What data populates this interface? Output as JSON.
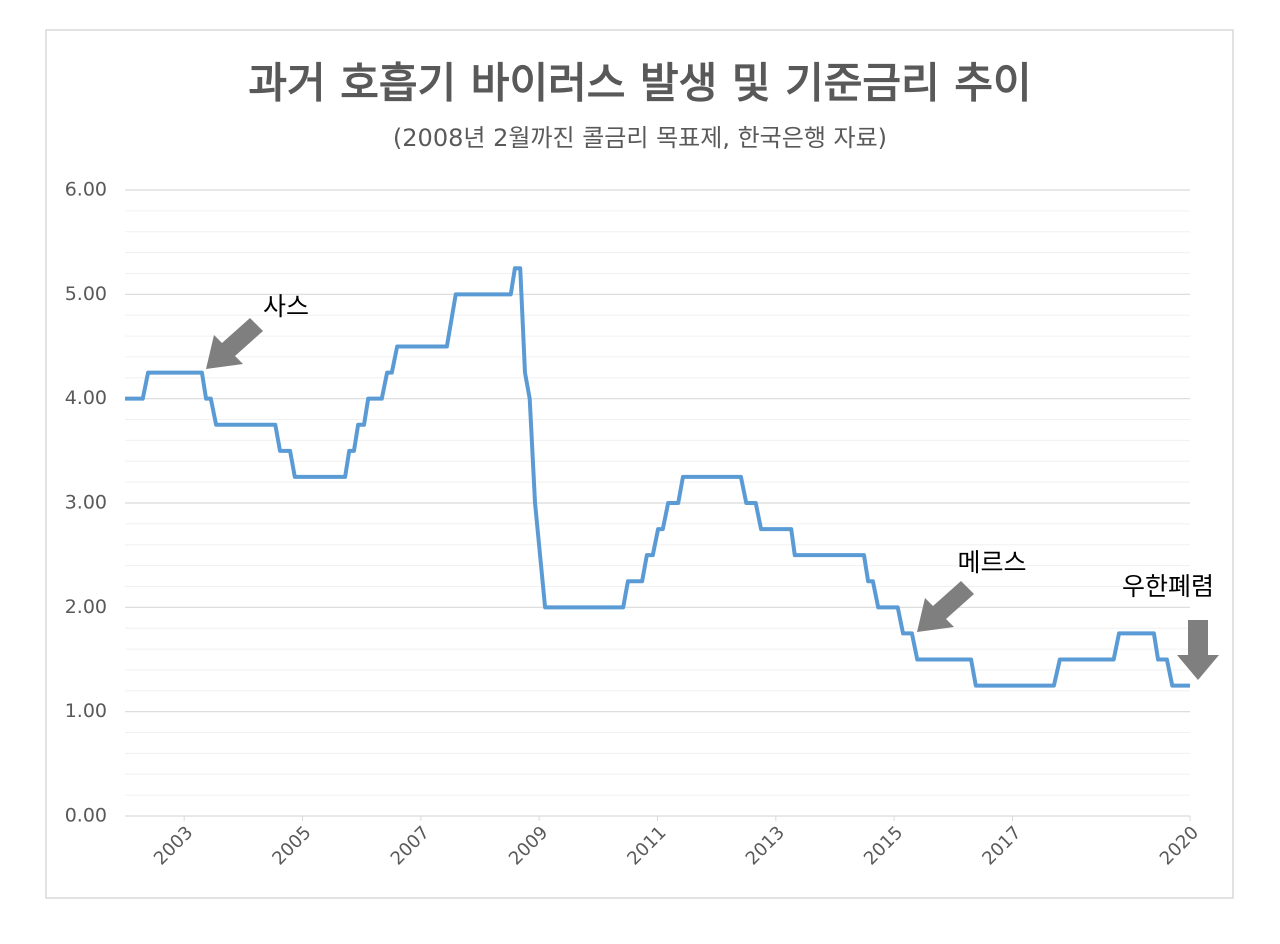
{
  "chart_data": {
    "type": "line",
    "title": "과거 호흡기 바이러스 발생 및 기준금리 추이",
    "subtitle": "(2008년 2월까진 콜금리 목표제, 한국은행 자료)",
    "x": [
      2002.0,
      2002.3,
      2002.39,
      2003.3,
      2003.37,
      2003.45,
      2003.54,
      2004.54,
      2004.62,
      2004.79,
      2004.87,
      2005.72,
      2005.79,
      2005.87,
      2005.94,
      2006.04,
      2006.11,
      2006.34,
      2006.43,
      2006.51,
      2006.6,
      2007.44,
      2007.59,
      2008.52,
      2008.59,
      2008.68,
      2008.76,
      2008.84,
      2008.93,
      2009.1,
      2010.42,
      2010.5,
      2010.74,
      2010.82,
      2010.92,
      2011.01,
      2011.09,
      2011.18,
      2011.35,
      2011.43,
      2012.41,
      2012.5,
      2012.66,
      2012.75,
      2013.26,
      2013.32,
      2014.49,
      2014.56,
      2014.64,
      2014.73,
      2015.06,
      2015.15,
      2015.3,
      2015.39,
      2016.3,
      2016.38,
      2017.7,
      2017.8,
      2018.71,
      2018.8,
      2019.39,
      2019.46,
      2019.61,
      2019.7,
      2020.0
    ],
    "series": [
      {
        "name": "기준금리",
        "color": "#5b9bd5",
        "values": [
          4.0,
          4.0,
          4.25,
          4.25,
          4.0,
          4.0,
          3.75,
          3.75,
          3.5,
          3.5,
          3.25,
          3.25,
          3.5,
          3.5,
          3.75,
          3.75,
          4.0,
          4.0,
          4.25,
          4.25,
          4.5,
          4.5,
          5.0,
          5.0,
          5.25,
          5.25,
          4.25,
          4.0,
          3.0,
          2.0,
          2.0,
          2.25,
          2.25,
          2.5,
          2.5,
          2.75,
          2.75,
          3.0,
          3.0,
          3.25,
          3.25,
          3.0,
          3.0,
          2.75,
          2.75,
          2.5,
          2.5,
          2.25,
          2.25,
          2.0,
          2.0,
          1.75,
          1.75,
          1.5,
          1.5,
          1.25,
          1.25,
          1.5,
          1.5,
          1.75,
          1.75,
          1.5,
          1.5,
          1.25,
          1.25
        ]
      }
    ],
    "xlim": [
      2002,
      2020
    ],
    "xticks": [
      2003,
      2005,
      2007,
      2009,
      2011,
      2013,
      2015,
      2017,
      2020
    ],
    "ylim": [
      0,
      6
    ],
    "yticks": [
      {
        "value": 0,
        "label": "0.00"
      },
      {
        "value": 1,
        "label": "1.00"
      },
      {
        "value": 2,
        "label": "2.00"
      },
      {
        "value": 3,
        "label": "3.00"
      },
      {
        "value": 4,
        "label": "4.00"
      },
      {
        "value": 5,
        "label": "5.00"
      },
      {
        "value": 6,
        "label": "6.00"
      }
    ],
    "minor_yticks": [
      0.2,
      0.4,
      0.6,
      0.8,
      1.2,
      1.4,
      1.6,
      1.8,
      2.2,
      2.4,
      2.6,
      2.8,
      3.2,
      3.4,
      3.6,
      3.8,
      4.2,
      4.4,
      4.6,
      4.8,
      5.2,
      5.4,
      5.6,
      5.8
    ],
    "grid": true,
    "annotations": [
      "사스",
      "메르스",
      "우한폐렴"
    ]
  }
}
